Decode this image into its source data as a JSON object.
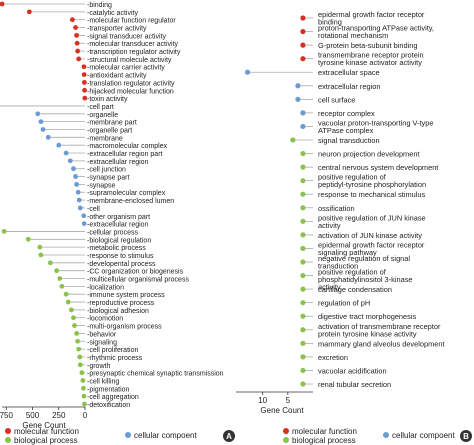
{
  "colors": {
    "molecular_function": "#d6311f",
    "cellular_component": "#6b9bd1",
    "biological_process": "#8bc34a",
    "stem": "#aaaaaa",
    "axis": "#333333"
  },
  "panel_labels": [
    "A",
    "B"
  ],
  "legend": {
    "molecular_function": "molecular function",
    "cellular_component": "cellular compoent",
    "biological_process": "biological process"
  },
  "chart_data": [
    {
      "type": "lollipop",
      "panel": "A",
      "xlabel": "Gene Count",
      "x_reversed": true,
      "xlim": [
        0,
        800
      ],
      "xticks": [
        750,
        500,
        250,
        0
      ],
      "xtick_labels": [
        "750",
        "500",
        "250",
        "0"
      ],
      "items": [
        {
          "label": "-binding",
          "value": 790,
          "category": "molecular_function"
        },
        {
          "label": "-catalytic activity",
          "value": 530,
          "category": "molecular_function"
        },
        {
          "label": "-molecular function regulator",
          "value": 120,
          "category": "molecular_function"
        },
        {
          "label": "-transporter activity",
          "value": 90,
          "category": "molecular_function"
        },
        {
          "label": "-signal transducer activity",
          "value": 80,
          "category": "molecular_function"
        },
        {
          "label": "-molecular transducer activity",
          "value": 75,
          "category": "molecular_function"
        },
        {
          "label": "-transcription regulator activity",
          "value": 70,
          "category": "molecular_function"
        },
        {
          "label": "-structural molecule activity",
          "value": 60,
          "category": "molecular_function"
        },
        {
          "label": "-molecular carrier activity",
          "value": 10,
          "category": "molecular_function"
        },
        {
          "label": "-antioxidant activity",
          "value": 8,
          "category": "molecular_function"
        },
        {
          "label": "-translation regulator activity",
          "value": 6,
          "category": "molecular_function"
        },
        {
          "label": "-hijacked molecular function",
          "value": 4,
          "category": "molecular_function"
        },
        {
          "label": "-toxin activity",
          "value": 2,
          "category": "molecular_function"
        },
        {
          "label": "-cell part",
          "value": 860,
          "category": "cellular_component"
        },
        {
          "label": "-organelle",
          "value": 450,
          "category": "cellular_component"
        },
        {
          "label": "-membrane part",
          "value": 420,
          "category": "cellular_component"
        },
        {
          "label": "-organelle part",
          "value": 400,
          "category": "cellular_component"
        },
        {
          "label": "-membrane",
          "value": 350,
          "category": "cellular_component"
        },
        {
          "label": "-macromolecular complex",
          "value": 250,
          "category": "cellular_component"
        },
        {
          "label": "-extracellular region part",
          "value": 180,
          "category": "cellular_component"
        },
        {
          "label": "-extracellular region",
          "value": 140,
          "category": "cellular_component"
        },
        {
          "label": "-cell junction",
          "value": 110,
          "category": "cellular_component"
        },
        {
          "label": "-synapse part",
          "value": 90,
          "category": "cellular_component"
        },
        {
          "label": "-synapse",
          "value": 80,
          "category": "cellular_component"
        },
        {
          "label": "-supramolecular complex",
          "value": 65,
          "category": "cellular_component"
        },
        {
          "label": "-membrane-enclosed lumen",
          "value": 55,
          "category": "cellular_component"
        },
        {
          "label": "-cell",
          "value": 45,
          "category": "cellular_component"
        },
        {
          "label": "-other organism part",
          "value": 12,
          "category": "cellular_component"
        },
        {
          "label": "-extracellular region",
          "value": 8,
          "category": "cellular_component"
        },
        {
          "label": "-cellular process",
          "value": 770,
          "category": "biological_process"
        },
        {
          "label": "-biological regulation",
          "value": 540,
          "category": "biological_process"
        },
        {
          "label": "-metabolic process",
          "value": 430,
          "category": "biological_process"
        },
        {
          "label": "-response to stimulus",
          "value": 420,
          "category": "biological_process"
        },
        {
          "label": "-developental process",
          "value": 330,
          "category": "biological_process"
        },
        {
          "label": "-CC organization or biogenesis",
          "value": 270,
          "category": "biological_process"
        },
        {
          "label": "-multicellular organismal process",
          "value": 240,
          "category": "biological_process"
        },
        {
          "label": "-localization",
          "value": 220,
          "category": "biological_process"
        },
        {
          "label": "-immune system process",
          "value": 180,
          "category": "biological_process"
        },
        {
          "label": "-reproductive process",
          "value": 160,
          "category": "biological_process"
        },
        {
          "label": "-biological adhesion",
          "value": 130,
          "category": "biological_process"
        },
        {
          "label": "-locomotion",
          "value": 110,
          "category": "biological_process"
        },
        {
          "label": "-multi-organism process",
          "value": 100,
          "category": "biological_process"
        },
        {
          "label": "-behavior",
          "value": 80,
          "category": "biological_process"
        },
        {
          "label": "-signaling",
          "value": 70,
          "category": "biological_process"
        },
        {
          "label": "-cell proliferation",
          "value": 60,
          "category": "biological_process"
        },
        {
          "label": "-rhythmic process",
          "value": 50,
          "category": "biological_process"
        },
        {
          "label": "-growth",
          "value": 45,
          "category": "biological_process"
        },
        {
          "label": "-presynaptic chemical synaptic transmission",
          "value": 30,
          "category": "biological_process"
        },
        {
          "label": "-cell killing",
          "value": 20,
          "category": "biological_process"
        },
        {
          "label": "-pigmentation",
          "value": 15,
          "category": "biological_process"
        },
        {
          "label": "-cell aggregation",
          "value": 10,
          "category": "biological_process"
        },
        {
          "label": "-detoxification",
          "value": 5,
          "category": "biological_process"
        }
      ]
    },
    {
      "type": "lollipop",
      "panel": "B",
      "xlabel": "Gene Count",
      "x_reversed": true,
      "xlim": [
        0,
        14.5
      ],
      "xticks": [
        10,
        5
      ],
      "xtick_labels": [
        "10",
        "5"
      ],
      "items": [
        {
          "label": "epidermal growth factor receptor binding",
          "value": 2,
          "category": "molecular_function"
        },
        {
          "label": "proton-transporting ATPase activity, rotational mechanism",
          "value": 2,
          "category": "molecular_function"
        },
        {
          "label": "G-protein beta-subunit binding",
          "value": 2,
          "category": "molecular_function"
        },
        {
          "label": "transmembrane receptor protein tyrosine kinase activator activity",
          "value": 2,
          "category": "molecular_function"
        },
        {
          "label": "extracellular space",
          "value": 13,
          "category": "cellular_component"
        },
        {
          "label": "extracellular region",
          "value": 3,
          "category": "cellular_component"
        },
        {
          "label": "cell surface",
          "value": 3,
          "category": "cellular_component"
        },
        {
          "label": "receptor complex",
          "value": 2,
          "category": "cellular_component"
        },
        {
          "label": "vacuolar proton-transporting V-type ATPase complex",
          "value": 2,
          "category": "cellular_component"
        },
        {
          "label": "signal transduction",
          "value": 4,
          "category": "biological_process"
        },
        {
          "label": "neuron projection development",
          "value": 2,
          "category": "biological_process"
        },
        {
          "label": "central nervous system development",
          "value": 2,
          "category": "biological_process"
        },
        {
          "label": "positive regulation of peptidyl-tyrosine phosphorylation",
          "value": 2,
          "category": "biological_process"
        },
        {
          "label": "response to mechanical stimulus",
          "value": 2,
          "category": "biological_process"
        },
        {
          "label": "ossification",
          "value": 2,
          "category": "biological_process"
        },
        {
          "label": "positive regulation of JUN kinase activity",
          "value": 2,
          "category": "biological_process"
        },
        {
          "label": "activation of JUN kinase activity",
          "value": 2,
          "category": "biological_process"
        },
        {
          "label": "epidermal growth factor receptor signaling pathway",
          "value": 2,
          "category": "biological_process"
        },
        {
          "label": "negative regulation of signal transduction",
          "value": 2,
          "category": "biological_process"
        },
        {
          "label": "positive regulation of phosphatidylinositol 3-kinase activity",
          "value": 2,
          "category": "biological_process"
        },
        {
          "label": "cartilage condensation",
          "value": 2,
          "category": "biological_process"
        },
        {
          "label": "regulation of pH",
          "value": 2,
          "category": "biological_process"
        },
        {
          "label": "digestive tract morphogenesis",
          "value": 2,
          "category": "biological_process"
        },
        {
          "label": "activation of transmembrane receptor protein tyrosine kinase activity",
          "value": 2,
          "category": "biological_process"
        },
        {
          "label": "mammary gland alveolus development",
          "value": 2,
          "category": "biological_process"
        },
        {
          "label": "excretion",
          "value": 2,
          "category": "biological_process"
        },
        {
          "label": "vacuolar acidification",
          "value": 2,
          "category": "biological_process"
        },
        {
          "label": "renal tubular secretion",
          "value": 2,
          "category": "biological_process"
        }
      ]
    }
  ]
}
